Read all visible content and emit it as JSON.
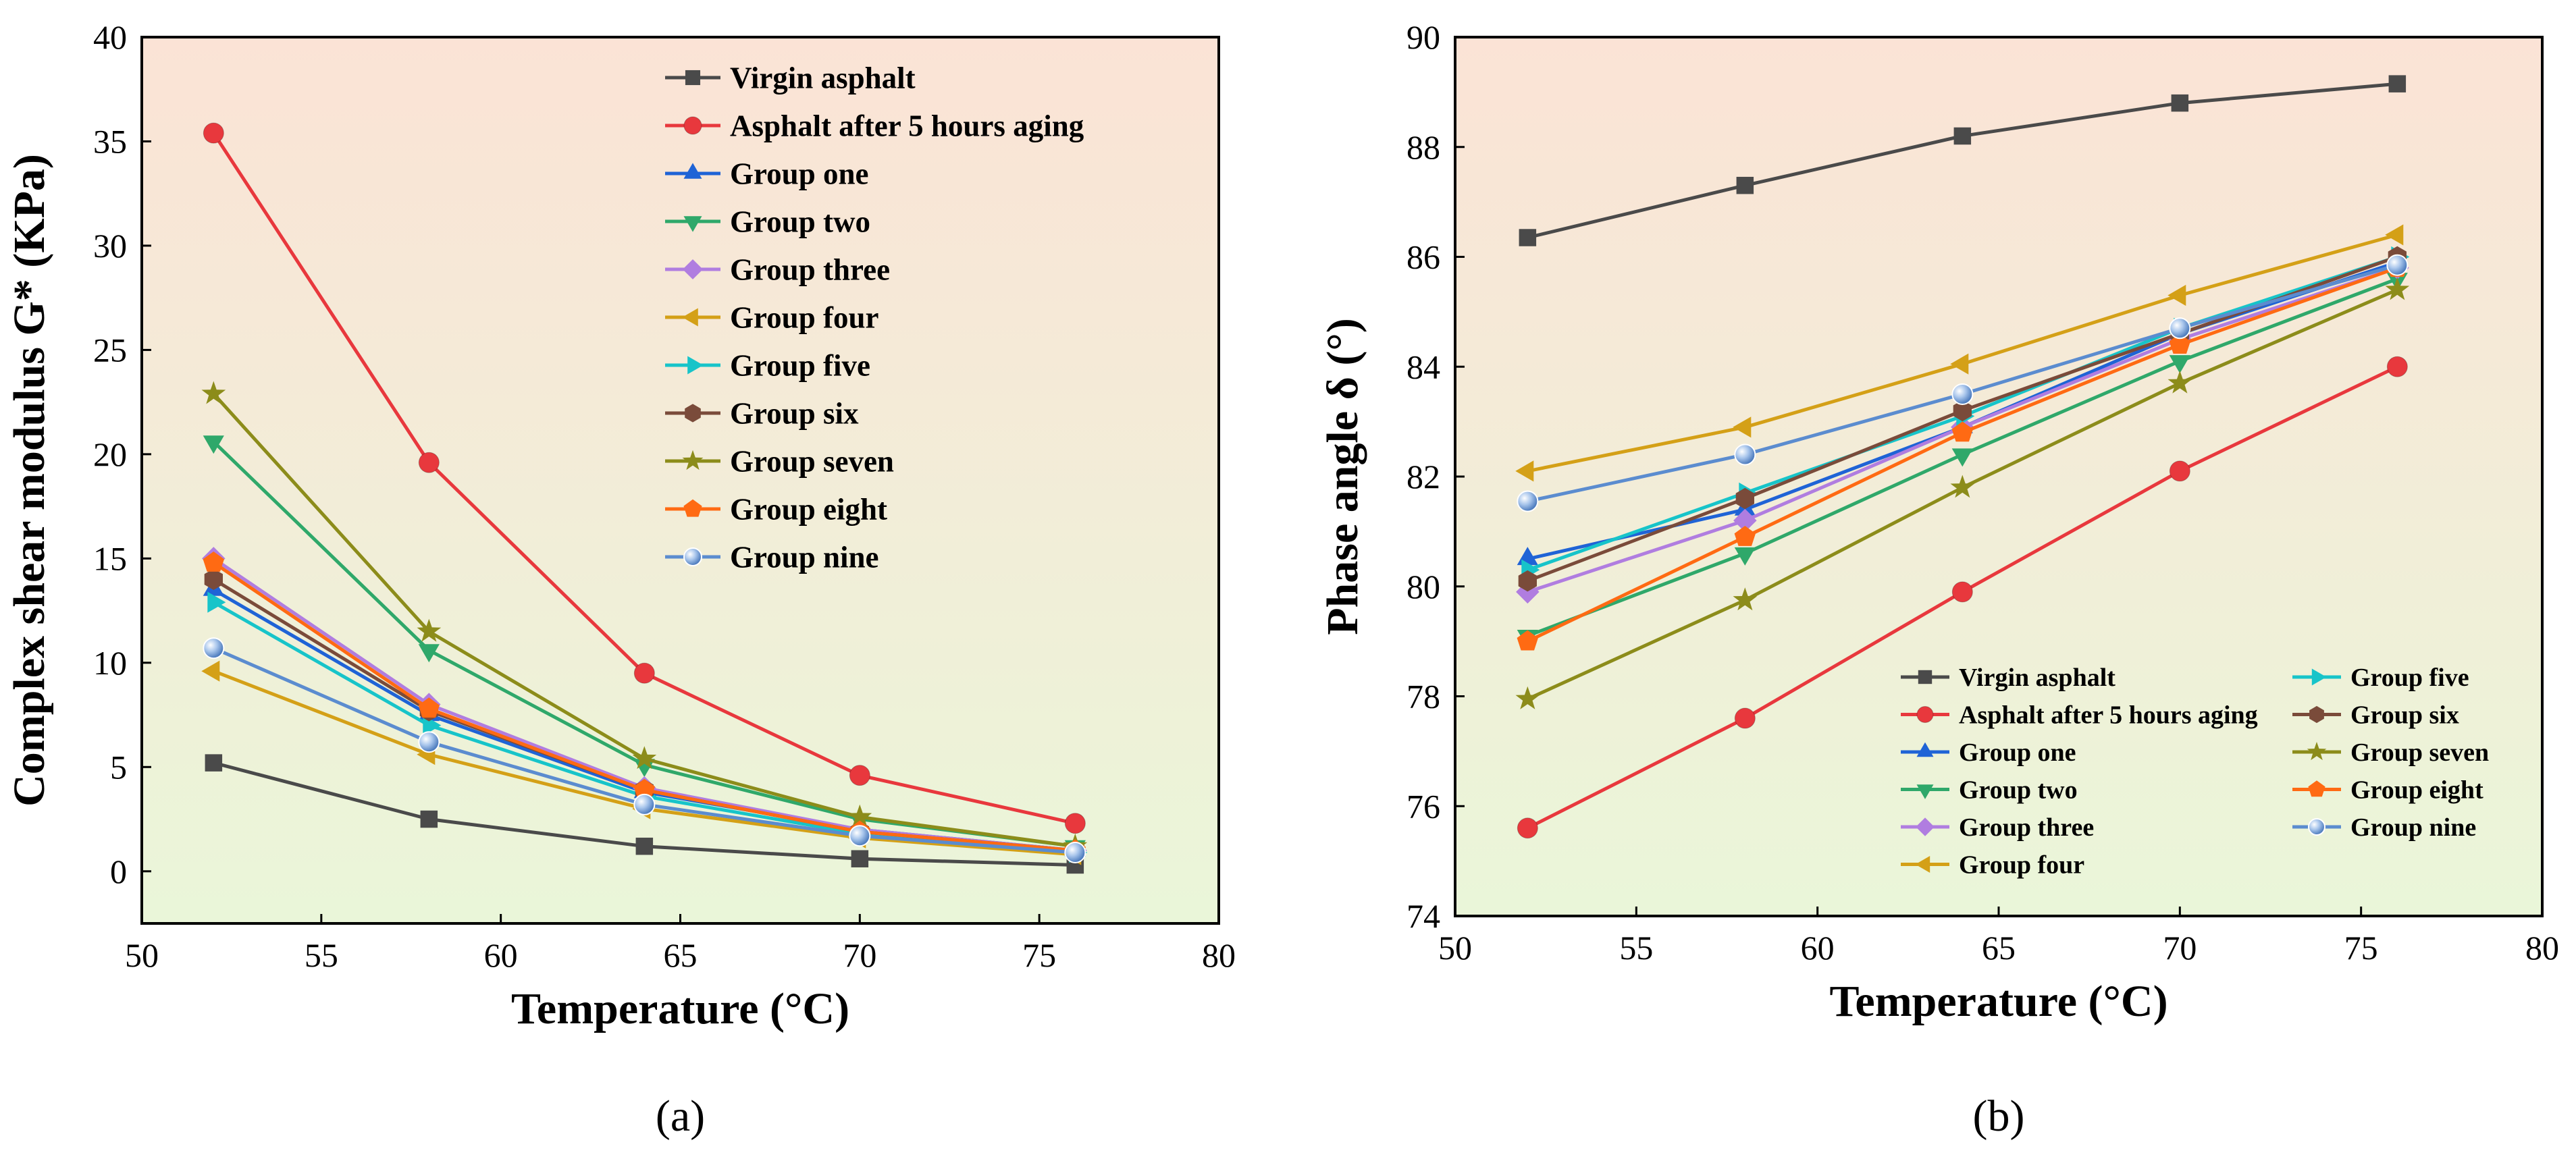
{
  "chart_data": [
    {
      "id": "a",
      "type": "line",
      "panel_label": "(a)",
      "xlabel": "Temperature (°C)",
      "ylabel": "Complex shear modulus G* (KPa)",
      "xlim": [
        50,
        80
      ],
      "ylim": [
        -2.5,
        40
      ],
      "xticks": [
        50,
        55,
        60,
        65,
        70,
        75,
        80
      ],
      "yticks": [
        0,
        5,
        10,
        15,
        20,
        25,
        30,
        35,
        40
      ],
      "legend_position": "top-right",
      "legend_columns": 1,
      "x": [
        52,
        58,
        64,
        70,
        76
      ],
      "series": [
        {
          "name": "Virgin asphalt",
          "color": "#4a4a4a",
          "marker": "square",
          "values": [
            5.2,
            2.5,
            1.2,
            0.6,
            0.3
          ]
        },
        {
          "name": "Asphalt after 5 hours aging",
          "color": "#e8383d",
          "marker": "circle",
          "values": [
            35.4,
            19.6,
            9.5,
            4.6,
            2.3
          ]
        },
        {
          "name": "Group one",
          "color": "#1f63d6",
          "marker": "triangle-up",
          "values": [
            13.5,
            7.5,
            3.8,
            2.0,
            1.0
          ]
        },
        {
          "name": "Group two",
          "color": "#2fa86a",
          "marker": "triangle-down",
          "values": [
            20.6,
            10.6,
            5.1,
            2.5,
            1.2
          ]
        },
        {
          "name": "Group three",
          "color": "#b07de0",
          "marker": "diamond",
          "values": [
            15.0,
            8.0,
            4.0,
            2.0,
            1.0
          ]
        },
        {
          "name": "Group four",
          "color": "#d4a017",
          "marker": "triangle-left",
          "values": [
            9.6,
            5.6,
            3.0,
            1.6,
            0.8
          ]
        },
        {
          "name": "Group five",
          "color": "#17c4c9",
          "marker": "triangle-right",
          "values": [
            12.9,
            7.0,
            3.6,
            1.8,
            0.9
          ]
        },
        {
          "name": "Group six",
          "color": "#7a4b3a",
          "marker": "hexagon",
          "values": [
            14.0,
            7.7,
            3.9,
            1.9,
            1.0
          ]
        },
        {
          "name": "Group seven",
          "color": "#8c8c1a",
          "marker": "star",
          "values": [
            22.9,
            11.5,
            5.4,
            2.6,
            1.2
          ]
        },
        {
          "name": "Group eight",
          "color": "#ff6a13",
          "marker": "pentagon",
          "values": [
            14.8,
            7.8,
            3.9,
            1.9,
            1.0
          ]
        },
        {
          "name": "Group nine",
          "color": "#5b8ccf",
          "marker": "sphere",
          "values": [
            10.7,
            6.2,
            3.2,
            1.7,
            0.9
          ]
        }
      ]
    },
    {
      "id": "b",
      "type": "line",
      "panel_label": "(b)",
      "xlabel": "Temperature (°C)",
      "ylabel": "Phase angle δ (°)",
      "xlim": [
        50,
        80
      ],
      "ylim": [
        74,
        90
      ],
      "xticks": [
        50,
        55,
        60,
        65,
        70,
        75,
        80
      ],
      "yticks": [
        74,
        76,
        78,
        80,
        82,
        84,
        86,
        88,
        90
      ],
      "legend_position": "bottom-right",
      "legend_columns": 2,
      "x": [
        52,
        58,
        64,
        70,
        76
      ],
      "series": [
        {
          "name": "Virgin asphalt",
          "color": "#4a4a4a",
          "marker": "square",
          "values": [
            86.35,
            87.3,
            88.2,
            88.8,
            89.15
          ]
        },
        {
          "name": "Asphalt after 5 hours aging",
          "color": "#e8383d",
          "marker": "circle",
          "values": [
            75.6,
            77.6,
            79.9,
            82.1,
            84.0
          ]
        },
        {
          "name": "Group one",
          "color": "#1f63d6",
          "marker": "triangle-up",
          "values": [
            80.5,
            81.4,
            82.9,
            84.6,
            85.9
          ]
        },
        {
          "name": "Group two",
          "color": "#2fa86a",
          "marker": "triangle-down",
          "values": [
            79.1,
            80.6,
            82.4,
            84.1,
            85.6
          ]
        },
        {
          "name": "Group three",
          "color": "#b07de0",
          "marker": "diamond",
          "values": [
            79.9,
            81.2,
            82.9,
            84.5,
            85.8
          ]
        },
        {
          "name": "Group four",
          "color": "#d4a017",
          "marker": "triangle-left",
          "values": [
            82.1,
            82.9,
            84.05,
            85.3,
            86.4
          ]
        },
        {
          "name": "Group five",
          "color": "#17c4c9",
          "marker": "triangle-right",
          "values": [
            80.3,
            81.7,
            83.1,
            84.7,
            86.0
          ]
        },
        {
          "name": "Group six",
          "color": "#7a4b3a",
          "marker": "hexagon",
          "values": [
            80.1,
            81.6,
            83.2,
            84.6,
            86.0
          ]
        },
        {
          "name": "Group seven",
          "color": "#8c8c1a",
          "marker": "star",
          "values": [
            77.95,
            79.75,
            81.8,
            83.7,
            85.4
          ]
        },
        {
          "name": "Group eight",
          "color": "#ff6a13",
          "marker": "pentagon",
          "values": [
            79.0,
            80.9,
            82.8,
            84.4,
            85.8
          ]
        },
        {
          "name": "Group nine",
          "color": "#5b8ccf",
          "marker": "sphere",
          "values": [
            81.55,
            82.4,
            83.5,
            84.7,
            85.85
          ]
        }
      ]
    }
  ]
}
